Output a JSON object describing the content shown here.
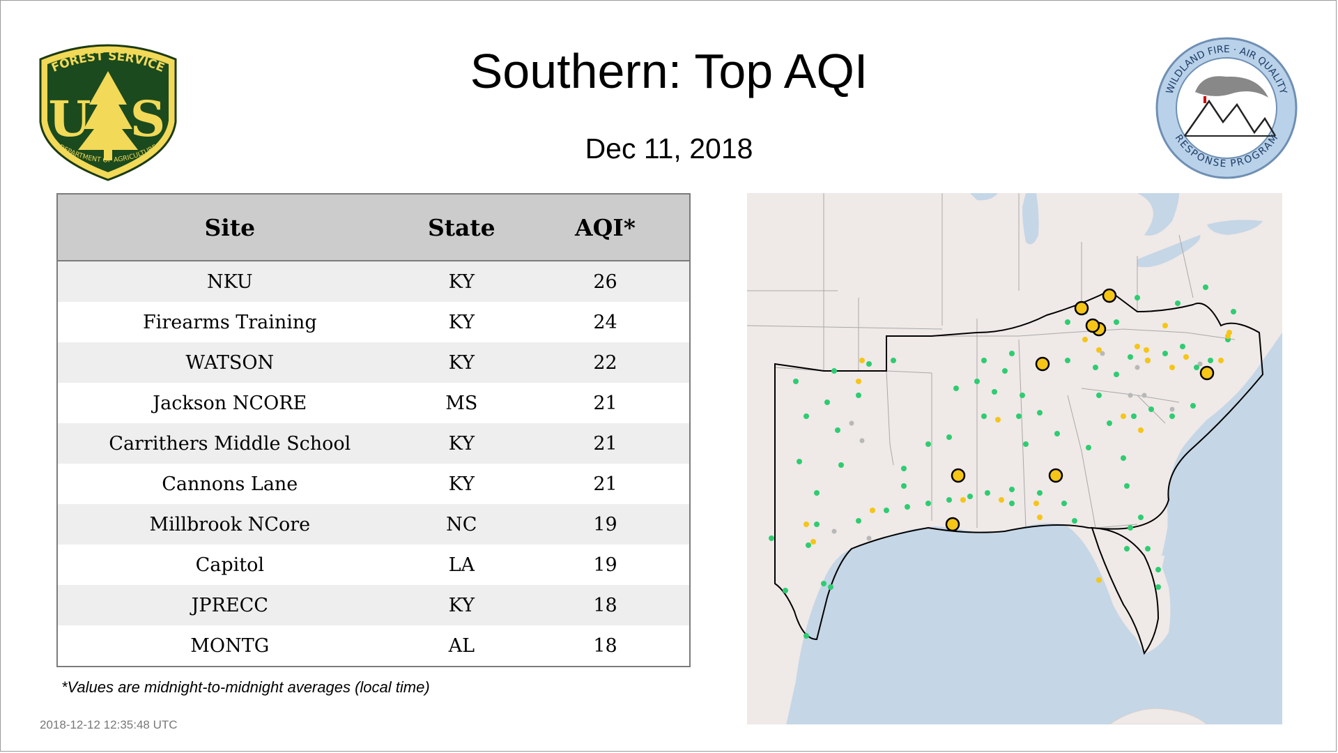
{
  "header": {
    "title": "Southern: Top AQI",
    "date": "Dec 11, 2018"
  },
  "logos": {
    "forest_service": {
      "icon": "forest-service-shield-icon",
      "top_text": "FOREST SERVICE",
      "bottom_text": "DEPARTMENT OF AGRICULTURE",
      "left_letter": "U",
      "right_letter": "S",
      "colors": {
        "fill": "#1b4a1e",
        "accent": "#f2d957"
      }
    },
    "wildland_fire": {
      "icon": "wildland-fire-air-quality-seal-icon",
      "top_text": "WILDLAND FIRE · AIR QUALITY",
      "bottom_text": "RESPONSE PROGRAM",
      "colors": {
        "ring": "#b9d2ea",
        "border": "#6f8fb3"
      }
    }
  },
  "table": {
    "headers": {
      "site": "Site",
      "state": "State",
      "aqi": "AQI*"
    },
    "rows": [
      {
        "site": "NKU",
        "state": "KY",
        "aqi": "26"
      },
      {
        "site": "Firearms Training",
        "state": "KY",
        "aqi": "24"
      },
      {
        "site": "WATSON",
        "state": "KY",
        "aqi": "22"
      },
      {
        "site": "Jackson NCORE",
        "state": "MS",
        "aqi": "21"
      },
      {
        "site": "Carrithers Middle School",
        "state": "KY",
        "aqi": "21"
      },
      {
        "site": "Cannons Lane",
        "state": "KY",
        "aqi": "21"
      },
      {
        "site": "Millbrook NCore",
        "state": "NC",
        "aqi": "19"
      },
      {
        "site": "Capitol",
        "state": "LA",
        "aqi": "19"
      },
      {
        "site": "JPRECC",
        "state": "KY",
        "aqi": "18"
      },
      {
        "site": "MONTG",
        "state": "AL",
        "aqi": "18"
      }
    ]
  },
  "footnote": "*Values are midnight-to-midnight averages (local time)",
  "timestamp": "2018-12-12 12:35:48 UTC",
  "map": {
    "colors": {
      "land": "#efe9e7",
      "water": "#c5d6e6",
      "good": "#2ecc71",
      "moderate": "#f5c518",
      "no_data": "#b8b8b8",
      "top_site_ring": "#000000"
    }
  }
}
